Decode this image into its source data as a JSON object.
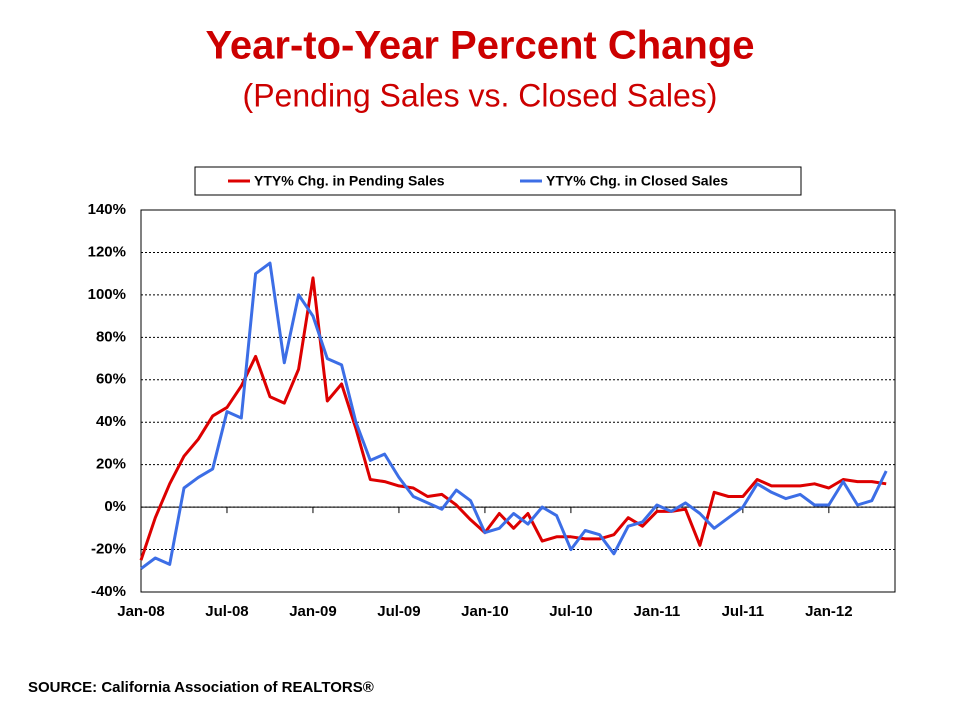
{
  "chart_data": {
    "type": "line",
    "title": "Year-to-Year Percent Change",
    "subtitle": "(Pending Sales vs. Closed Sales)",
    "source": "SOURCE: California Association of REALTORS®",
    "categories": [
      "Jan-08",
      null,
      null,
      null,
      null,
      null,
      "Jul-08",
      null,
      null,
      null,
      null,
      null,
      "Jan-09",
      null,
      null,
      null,
      null,
      null,
      "Jul-09",
      null,
      null,
      null,
      null,
      null,
      "Jan-10",
      null,
      null,
      null,
      null,
      null,
      "Jul-10",
      null,
      null,
      null,
      null,
      null,
      "Jan-11",
      null,
      null,
      null,
      null,
      null,
      "Jul-11",
      null,
      null,
      null,
      null,
      null,
      "Jan-12",
      null,
      null,
      null,
      null
    ],
    "series": [
      {
        "name": "YTY% Chg. in Pending Sales",
        "color": "#dd0000",
        "values": [
          -25,
          -5,
          11,
          24,
          32,
          43,
          47,
          57,
          71,
          52,
          49,
          65,
          108,
          50,
          58,
          37,
          13,
          12,
          10,
          9,
          5,
          6,
          1,
          -6,
          -12,
          -3,
          -10,
          -3,
          -16,
          -14,
          -14,
          -15,
          -15,
          -13,
          -5,
          -9,
          -2,
          -2,
          -1,
          -18,
          7,
          5,
          5,
          13,
          10,
          10,
          10,
          11,
          9,
          13,
          12,
          12,
          11
        ]
      },
      {
        "name": "YTY% Chg. in Closed Sales",
        "color": "#3c6ee6",
        "values": [
          -29,
          -24,
          -27,
          9,
          14,
          18,
          45,
          42,
          110,
          115,
          68,
          100,
          90,
          70,
          67,
          40,
          22,
          25,
          14,
          5,
          2,
          -1,
          8,
          3,
          -12,
          -10,
          -3,
          -8,
          0,
          -4,
          -20,
          -11,
          -13,
          -22,
          -9,
          -7,
          1,
          -2,
          2,
          -3,
          -10,
          -5,
          0,
          11,
          7,
          4,
          6,
          1,
          1,
          12,
          1,
          3,
          17
        ]
      }
    ],
    "ylim": [
      -40,
      140
    ],
    "yticks": [
      {
        "value": -40,
        "label": "-40%"
      },
      {
        "value": -20,
        "label": "-20%"
      },
      {
        "value": 0,
        "label": "0%"
      },
      {
        "value": 20,
        "label": "20%"
      },
      {
        "value": 40,
        "label": "40%"
      },
      {
        "value": 60,
        "label": "60%"
      },
      {
        "value": 80,
        "label": "80%"
      },
      {
        "value": 100,
        "label": "100%"
      },
      {
        "value": 120,
        "label": "120%"
      },
      {
        "value": 140,
        "label": "140%"
      }
    ],
    "grid": true,
    "legend": "top"
  }
}
